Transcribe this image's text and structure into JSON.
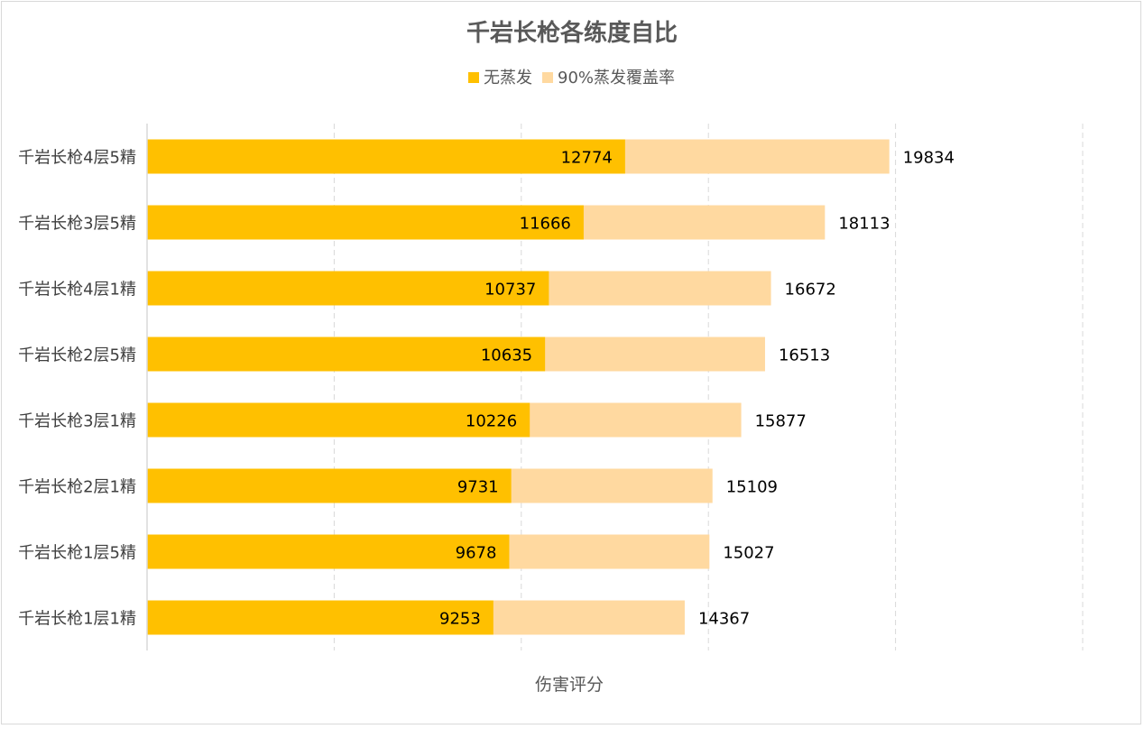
{
  "chart_data": {
    "type": "bar",
    "orientation": "horizontal",
    "title": "千岩长枪各练度自比",
    "xlabel": "伤害评分",
    "ylabel": "",
    "xlim": [
      0,
      25000
    ],
    "grid": "vertical-dashed",
    "legend_position": "top",
    "categories": [
      "千岩长枪4层5精",
      "千岩长枪3层5精",
      "千岩长枪4层1精",
      "千岩长枪2层5精",
      "千岩长枪3层1精",
      "千岩长枪2层1精",
      "千岩长枪1层5精",
      "千岩长枪1层1精"
    ],
    "series": [
      {
        "name": "无蒸发",
        "color": "#FFC000",
        "values": [
          12774,
          11666,
          10737,
          10635,
          10226,
          9731,
          9678,
          9253
        ]
      },
      {
        "name": "90%蒸发覆盖率",
        "color": "#FFD9A0",
        "values": [
          19834,
          18113,
          16672,
          16513,
          15877,
          15109,
          15027,
          14367
        ]
      }
    ]
  }
}
